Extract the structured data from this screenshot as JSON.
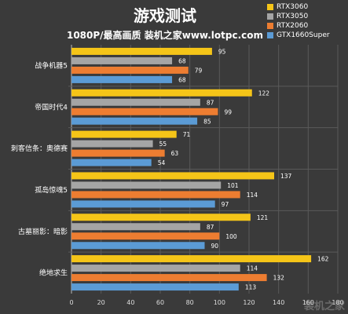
{
  "chart_data": {
    "type": "bar",
    "orientation": "horizontal",
    "title": "游戏测试",
    "subtitle": "1080P/最高画质  装机之家www.lotpc.com",
    "categories": [
      "战争机器5",
      "帝国时代4",
      "刺客信条：奥德赛",
      "孤岛惊魂5",
      "古墓丽影：暗影",
      "绝地求生"
    ],
    "series": [
      {
        "name": "RTX3060",
        "color": "#f5c518",
        "values": [
          95,
          122,
          71,
          137,
          121,
          162
        ]
      },
      {
        "name": "RTX3050",
        "color": "#a5a5a5",
        "values": [
          68,
          87,
          55,
          101,
          87,
          114
        ]
      },
      {
        "name": "RTX2060",
        "color": "#ed7d31",
        "values": [
          79,
          99,
          63,
          114,
          100,
          132
        ]
      },
      {
        "name": "GTX1660Super",
        "color": "#5b9bd5",
        "values": [
          68,
          85,
          54,
          97,
          90,
          113
        ]
      }
    ],
    "xlim": [
      0,
      180
    ],
    "xticks": [
      "0",
      "20",
      "40",
      "60",
      "80",
      "100",
      "120",
      "140",
      "160",
      "180"
    ],
    "legend_position": "top-right",
    "grid": true
  },
  "watermark": "装机之家"
}
